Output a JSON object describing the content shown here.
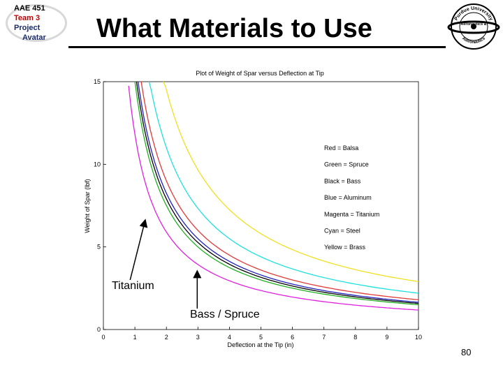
{
  "header": {
    "title": "What Materials to Use",
    "logo_lines": [
      "AAE 451",
      "Team 3",
      "Project",
      "Avatar"
    ]
  },
  "seal": {
    "text_top": "Purdue University",
    "text_mid": "Aeronautics &",
    "text_bottom": "Astronautics"
  },
  "page_number": "80",
  "chart_data": {
    "type": "line",
    "title": "Plot of Weight of Spar versus Deflection at Tip",
    "xlabel": "Deflection at the Tip (in)",
    "ylabel": "Weight of Spar (lbf)",
    "xlim": [
      0,
      10
    ],
    "ylim": [
      0,
      15
    ],
    "xticks": [
      "0",
      "1",
      "2",
      "3",
      "4",
      "5",
      "6",
      "7",
      "8",
      "9",
      "10"
    ],
    "yticks": [
      "0",
      "5",
      "10",
      "15"
    ],
    "grid": false,
    "series": [
      {
        "name": "Balsa",
        "color": "#e03a3a",
        "x_start": 1.2,
        "k": 18.0
      },
      {
        "name": "Spruce",
        "color": "#20b020",
        "x_start": 1.0,
        "k": 15.0
      },
      {
        "name": "Bass",
        "color": "#000000",
        "x_start": 1.05,
        "k": 15.8
      },
      {
        "name": "Aluminum",
        "color": "#2020c0",
        "x_start": 1.1,
        "k": 16.5
      },
      {
        "name": "Titanium",
        "color": "#e020e0",
        "x_start": 0.8,
        "k": 11.8
      },
      {
        "name": "Steel",
        "color": "#20e0e0",
        "x_start": 1.45,
        "k": 22.0
      },
      {
        "name": "Brass",
        "color": "#f0e020",
        "x_start": 1.9,
        "k": 29.0
      }
    ],
    "legend": {
      "placement": "right",
      "entries": [
        "Red = Balsa",
        "Green = Spruce",
        "Black = Bass",
        "Blue = Aluminum",
        "Magenta = Titanium",
        "Cyan = Steel",
        "Yellow = Brass"
      ]
    },
    "annotations": [
      {
        "text": "Titanium",
        "points_to_x": 1.3,
        "points_to_y": 7.0
      },
      {
        "text": "Bass / Spruce",
        "points_to_x": 3.0,
        "points_to_y": 4.0
      }
    ]
  }
}
